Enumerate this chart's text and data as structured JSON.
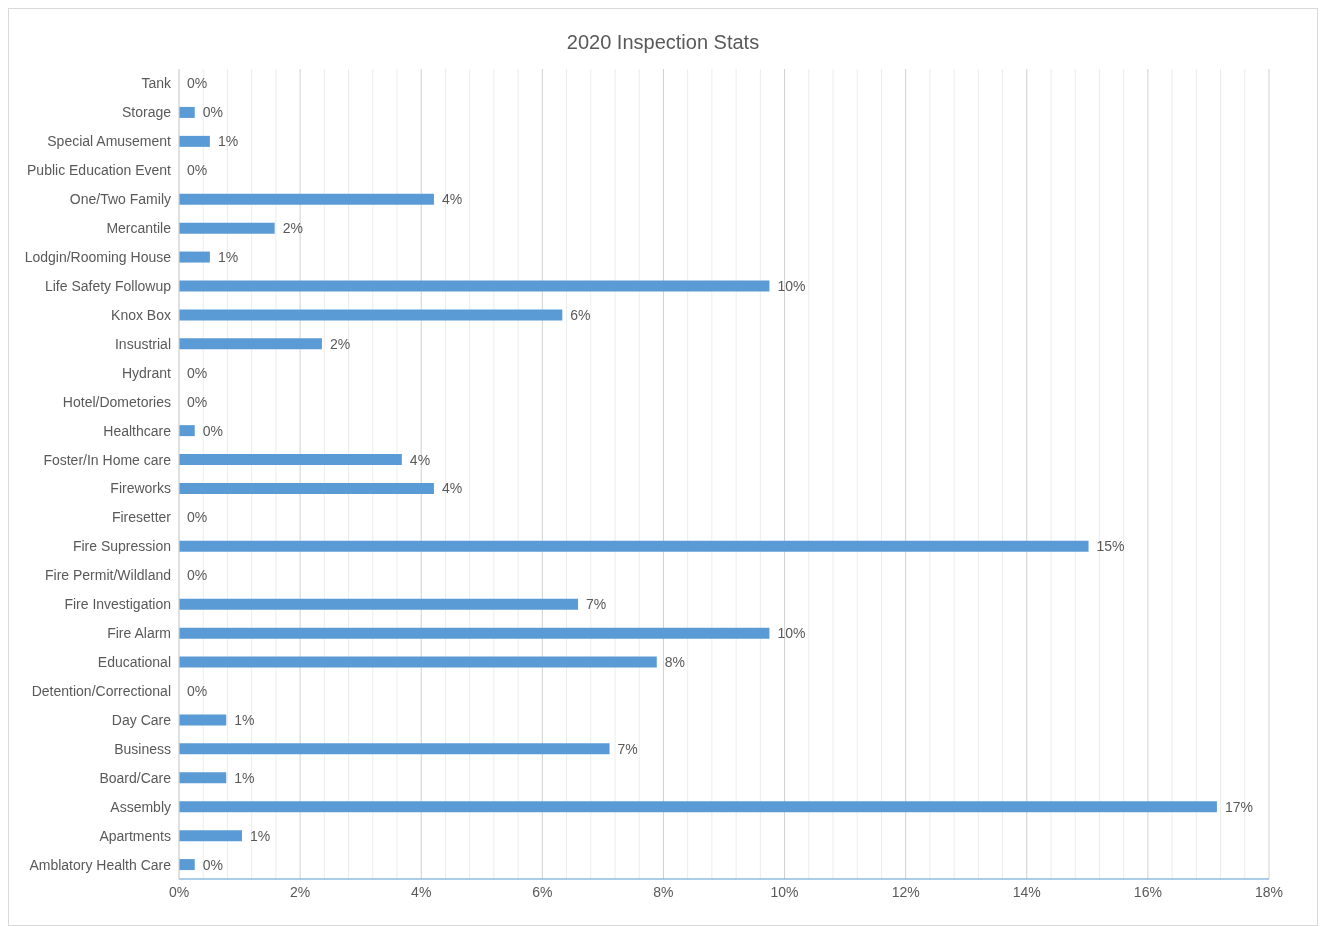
{
  "chart_data": {
    "type": "bar",
    "orientation": "horizontal",
    "title": "2020 Inspection Stats",
    "categories": [
      "Tank",
      "Storage",
      "Special Amusement",
      "Public Education Event",
      "One/Two Family",
      "Mercantile",
      "Lodgin/Rooming House",
      "Life Safety Followup",
      "Knox Box",
      "Insustrial",
      "Hydrant",
      "Hotel/Dometories",
      "Healthcare",
      "Foster/In Home care",
      "Fireworks",
      "Firesetter",
      "Fire Supression",
      "Fire Permit/Wildland",
      "Fire Investigation",
      "Fire Alarm",
      "Educational",
      "Detention/Correctional",
      "Day Care",
      "Business",
      "Board/Care",
      "Assembly",
      "Apartments",
      "Amblatory Health Care"
    ],
    "values": [
      0,
      0.26,
      0.51,
      0,
      4.21,
      1.58,
      0.51,
      9.75,
      6.33,
      2.36,
      0,
      0,
      0.26,
      3.68,
      4.21,
      0,
      15.02,
      0,
      6.59,
      9.75,
      7.89,
      0,
      0.78,
      7.11,
      0.78,
      17.14,
      1.04,
      0.26
    ],
    "value_labels": [
      "0%",
      "0%",
      "1%",
      "0%",
      "4%",
      "2%",
      "1%",
      "10%",
      "6%",
      "2%",
      "0%",
      "0%",
      "0%",
      "4%",
      "4%",
      "0%",
      "15%",
      "0%",
      "7%",
      "10%",
      "8%",
      "0%",
      "1%",
      "7%",
      "1%",
      "17%",
      "1%",
      "0%"
    ],
    "color": "#5b9bd5",
    "xlim": [
      0,
      18
    ],
    "xticks": [
      {
        "value": 0,
        "label": "0%"
      },
      {
        "value": 0.4,
        "label": null
      },
      {
        "value": 0.8,
        "label": null
      },
      {
        "value": 1.2,
        "label": null
      },
      {
        "value": 1.6,
        "label": null
      },
      {
        "value": 2,
        "label": "2%"
      },
      {
        "value": 2.4,
        "label": null
      },
      {
        "value": 2.8,
        "label": null
      },
      {
        "value": 3.2,
        "label": null
      },
      {
        "value": 3.6,
        "label": null
      },
      {
        "value": 4,
        "label": "4%"
      },
      {
        "value": 4.4,
        "label": null
      },
      {
        "value": 4.8,
        "label": null
      },
      {
        "value": 5.2,
        "label": null
      },
      {
        "value": 5.6,
        "label": null
      },
      {
        "value": 6,
        "label": "6%"
      },
      {
        "value": 6.4,
        "label": null
      },
      {
        "value": 6.8,
        "label": null
      },
      {
        "value": 7.2,
        "label": null
      },
      {
        "value": 7.6,
        "label": null
      },
      {
        "value": 8,
        "label": "8%"
      },
      {
        "value": 8.4,
        "label": null
      },
      {
        "value": 8.8,
        "label": null
      },
      {
        "value": 9.2,
        "label": null
      },
      {
        "value": 9.6,
        "label": null
      },
      {
        "value": 10,
        "label": "10%"
      },
      {
        "value": 10.4,
        "label": null
      },
      {
        "value": 10.8,
        "label": null
      },
      {
        "value": 11.2,
        "label": null
      },
      {
        "value": 11.6,
        "label": null
      },
      {
        "value": 12,
        "label": "12%"
      },
      {
        "value": 12.4,
        "label": null
      },
      {
        "value": 12.8,
        "label": null
      },
      {
        "value": 13.2,
        "label": null
      },
      {
        "value": 13.6,
        "label": null
      },
      {
        "value": 14,
        "label": "14%"
      },
      {
        "value": 14.4,
        "label": null
      },
      {
        "value": 14.8,
        "label": null
      },
      {
        "value": 15.2,
        "label": null
      },
      {
        "value": 15.6,
        "label": null
      },
      {
        "value": 16,
        "label": "16%"
      },
      {
        "value": 16.4,
        "label": null
      },
      {
        "value": 16.8,
        "label": null
      },
      {
        "value": 17.2,
        "label": null
      },
      {
        "value": 17.6,
        "label": null
      },
      {
        "value": 18,
        "label": "18%"
      }
    ],
    "grid": "x",
    "legend": false
  }
}
